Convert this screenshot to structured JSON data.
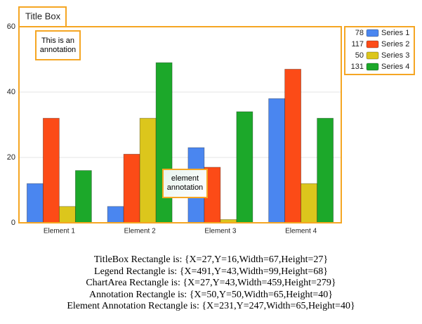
{
  "chart_data": {
    "type": "bar",
    "title": "Title Box",
    "categories": [
      "Element 1",
      "Element 2",
      "Element 3",
      "Element 4"
    ],
    "series": [
      {
        "name": "Series 1",
        "color": "#4a86f0",
        "total": 78,
        "values": [
          12,
          5,
          23,
          38
        ]
      },
      {
        "name": "Series 2",
        "color": "#fc4b17",
        "total": 117,
        "values": [
          32,
          21,
          17,
          47
        ]
      },
      {
        "name": "Series 3",
        "color": "#dcc61c",
        "total": 50,
        "values": [
          5,
          32,
          1,
          12
        ]
      },
      {
        "name": "Series 4",
        "color": "#1ca82a",
        "total": 131,
        "values": [
          16,
          49,
          34,
          32
        ]
      }
    ],
    "ylim": [
      0,
      60
    ],
    "yticks": [
      0,
      20,
      40,
      60
    ],
    "grid": true,
    "legend": "right",
    "annotations": [
      "This is an annotation",
      "element annotation"
    ],
    "info_lines": [
      "TitleBox Rectangle is: {X=27,Y=16,Width=67,Height=27}",
      "Legend Rectangle is: {X=491,Y=43,Width=99,Height=68}",
      "ChartArea Rectangle is: {X=27,Y=43,Width=459,Height=279}",
      "Annotation Rectangle is: {X=50,Y=50,Width=65,Height=40}",
      "Element Annotation Rectangle is: {X=231,Y=247,Width=65,Height=40}"
    ]
  }
}
